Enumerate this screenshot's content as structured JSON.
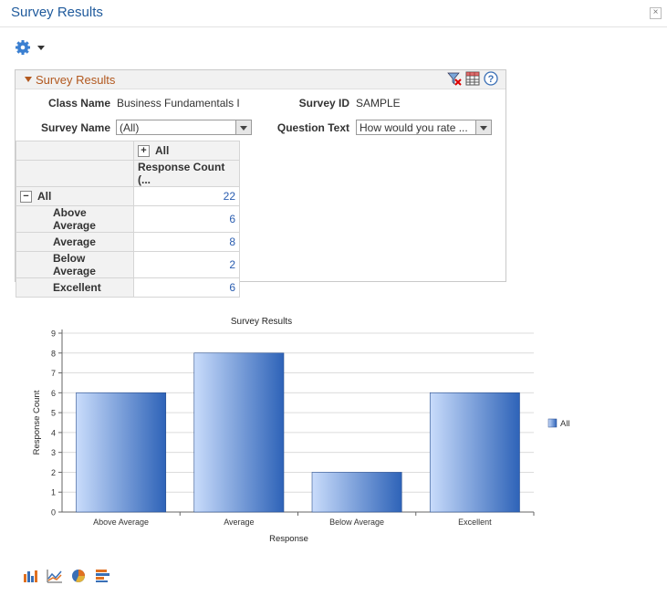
{
  "window": {
    "title": "Survey Results",
    "close": "×"
  },
  "panel": {
    "title": "Survey Results",
    "fields": {
      "class_name_label": "Class Name",
      "class_name_value": "Business Fundamentals I",
      "survey_id_label": "Survey ID",
      "survey_id_value": "SAMPLE",
      "survey_name_label": "Survey Name",
      "survey_name_value": "(All)",
      "question_text_label": "Question Text",
      "question_text_value": "How would you rate ..."
    },
    "pivot": {
      "col_header": "All",
      "col_metric": "Response Count (...",
      "total_label": "All",
      "total_value": "22",
      "rows": [
        {
          "label": "Above Average",
          "value": "6"
        },
        {
          "label": "Average",
          "value": "8"
        },
        {
          "label": "Below Average",
          "value": "2"
        },
        {
          "label": "Excellent",
          "value": "6"
        }
      ]
    }
  },
  "chart_data": {
    "type": "bar",
    "title": "Survey Results",
    "xlabel": "Response",
    "ylabel": "Response Count",
    "categories": [
      "Above Average",
      "Average",
      "Below Average",
      "Excellent"
    ],
    "series": [
      {
        "name": "All",
        "values": [
          6,
          8,
          2,
          6
        ]
      }
    ],
    "ylim": [
      0,
      9
    ],
    "yticks": [
      "0",
      "1",
      "2",
      "3",
      "4",
      "5",
      "6",
      "7",
      "8",
      "9"
    ],
    "grid": true,
    "legend": "right",
    "colors": {
      "bar_light": "#c9dcfb",
      "bar_dark": "#2e63b8"
    }
  }
}
